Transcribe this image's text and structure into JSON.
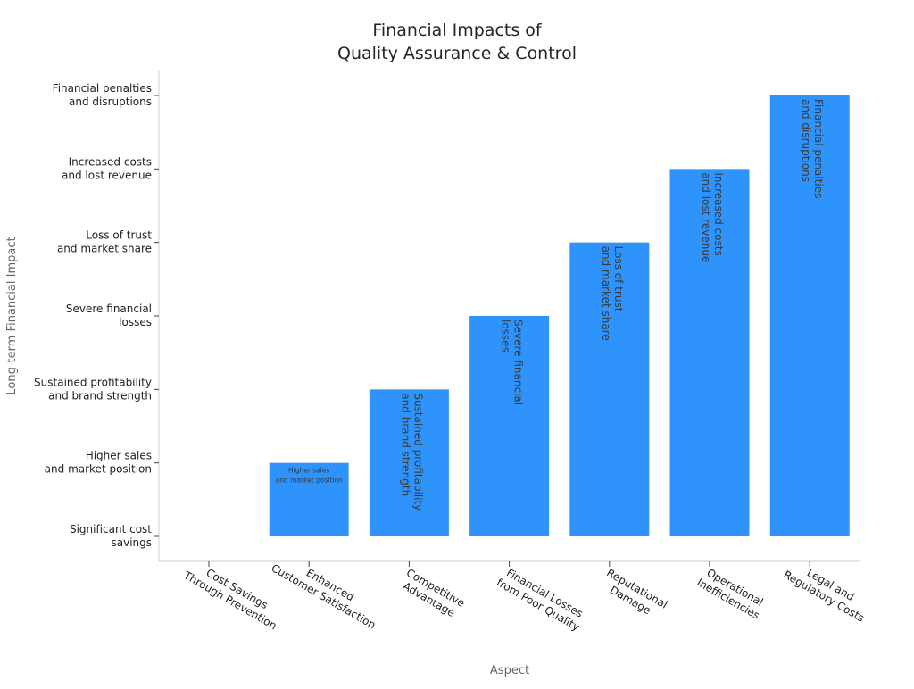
{
  "chart_data": {
    "type": "bar",
    "title": [
      "Financial Impacts of",
      "Quality Assurance & Control"
    ],
    "xlabel": "Aspect",
    "ylabel": "Long-term Financial Impact",
    "categories": [
      [
        "Cost Savings",
        "Through Prevention"
      ],
      [
        "Enhanced",
        "Customer Satisfaction"
      ],
      [
        "Competitive",
        "Advantage"
      ],
      [
        "Financial Losses",
        "from Poor Quality"
      ],
      [
        "Reputational",
        "Damage"
      ],
      [
        "Operational",
        "Inefficiencies"
      ],
      [
        "Legal and",
        "Regulatory Costs"
      ]
    ],
    "y_tick_labels": [
      [
        "Significant cost",
        "savings"
      ],
      [
        "Higher sales",
        "and market position"
      ],
      [
        "Sustained profitability",
        "and brand strength"
      ],
      [
        "Severe financial",
        "losses"
      ],
      [
        "Loss of trust",
        "and market share"
      ],
      [
        "Increased costs",
        "and lost revenue"
      ],
      [
        "Financial penalties",
        "and disruptions"
      ]
    ],
    "values": [
      0,
      1,
      2,
      3,
      4,
      5,
      6
    ],
    "bar_labels": [
      null,
      [
        "Higher sales",
        "and market position"
      ],
      [
        "Sustained profitability",
        "and brand strength"
      ],
      [
        "Severe financial",
        "losses"
      ],
      [
        "Loss of trust",
        "and market share"
      ],
      [
        "Increased costs",
        "and lost revenue"
      ],
      [
        "Financial penalties",
        "and disruptions"
      ]
    ],
    "ylim": [
      0,
      6
    ],
    "grid": false,
    "colors": {
      "bar": "#2e93fa",
      "bar_label": "#3a3a3a",
      "axis": "#cccccc",
      "text": "#222222",
      "label": "#666666"
    }
  }
}
